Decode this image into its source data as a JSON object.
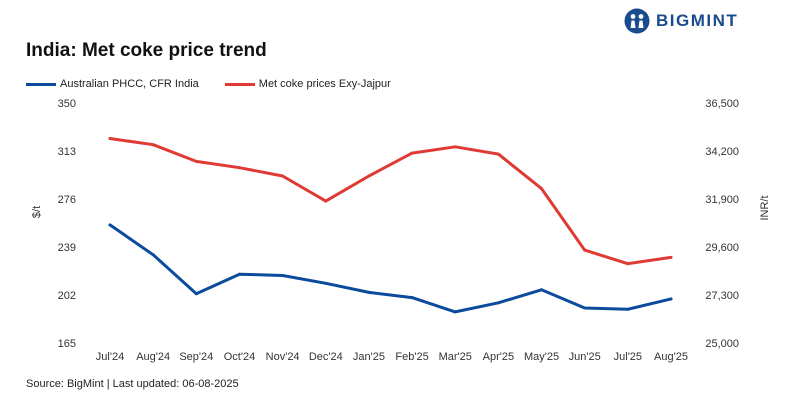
{
  "brand": {
    "name": "BIGMINT",
    "icon": "bigmint-people-icon"
  },
  "source": "Source: BigMint | Last updated: 06-08-2025",
  "chart_data": {
    "type": "line",
    "title": "India: Met coke price trend",
    "categories": [
      "Jul'24",
      "Aug'24",
      "Sep'24",
      "Oct'24",
      "Nov'24",
      "Dec'24",
      "Jan'25",
      "Feb'25",
      "Mar'25",
      "Apr'25",
      "May'25",
      "Jun'25",
      "Jul'25",
      "Aug'25"
    ],
    "ylabel_left": "$/t",
    "ylabel_right": "INR/t",
    "ylim_left": [
      165,
      350
    ],
    "ylim_right": [
      25000,
      36500
    ],
    "yticks_left": [
      "350",
      "313",
      "276",
      "239",
      "202",
      "165"
    ],
    "yticks_right": [
      "36,500",
      "34,200",
      "31,900",
      "29,600",
      "27,300",
      "25,000"
    ],
    "legend_position": "top-left",
    "grid": false,
    "series": [
      {
        "name": "Australian PHCC, CFR India",
        "axis": "left",
        "color": "#0b4a9c",
        "values": [
          256,
          233,
          203,
          218,
          217,
          211,
          204,
          200,
          189,
          196,
          206,
          192,
          191,
          199
        ]
      },
      {
        "name": "Met coke prices Exy-Jajpur",
        "axis": "right",
        "color": "#e03a34",
        "values": [
          34800,
          34500,
          33700,
          33400,
          33000,
          31800,
          33000,
          34100,
          34400,
          34050,
          32400,
          29450,
          28800,
          29100
        ]
      }
    ]
  }
}
